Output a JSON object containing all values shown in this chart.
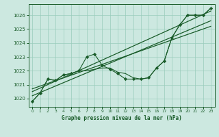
{
  "title": "Graphe pression niveau de la mer (hPa)",
  "bg_color": "#cce8e0",
  "grid_color": "#99ccbb",
  "line_color": "#1a5c2a",
  "x_ticks": [
    0,
    1,
    2,
    3,
    4,
    5,
    6,
    7,
    8,
    9,
    10,
    11,
    12,
    13,
    14,
    15,
    16,
    17,
    18,
    19,
    20,
    21,
    22,
    23
  ],
  "y_ticks": [
    1020,
    1021,
    1022,
    1023,
    1024,
    1025,
    1026
  ],
  "ylim": [
    1019.4,
    1026.8
  ],
  "xlim": [
    -0.5,
    23.5
  ],
  "wavy_series": [
    1019.8,
    1020.4,
    1021.4,
    1021.3,
    1021.7,
    1021.8,
    1022.0,
    1023.0,
    1023.2,
    1022.4,
    1022.1,
    1021.8,
    1021.4,
    1021.4,
    1021.4,
    1021.5,
    1022.2,
    1022.7,
    1024.4,
    1025.3,
    1026.0,
    1026.0,
    1026.0,
    1026.5
  ],
  "smooth_series": [
    1019.8,
    1020.4,
    1021.4,
    1021.3,
    1021.7,
    1021.8,
    1022.0,
    1022.0,
    1022.1,
    1022.2,
    1022.2,
    1021.9,
    1021.8,
    1021.5,
    1021.4,
    1021.5,
    1022.2,
    1022.7,
    1024.4,
    1025.3,
    1026.0,
    1026.0,
    1026.0,
    1026.5
  ],
  "trend1_x": [
    0,
    23
  ],
  "trend1_y": [
    1020.2,
    1025.6
  ],
  "trend2_x": [
    0,
    23
  ],
  "trend2_y": [
    1020.5,
    1026.3
  ],
  "trend3_x": [
    0,
    23
  ],
  "trend3_y": [
    1020.7,
    1025.2
  ]
}
